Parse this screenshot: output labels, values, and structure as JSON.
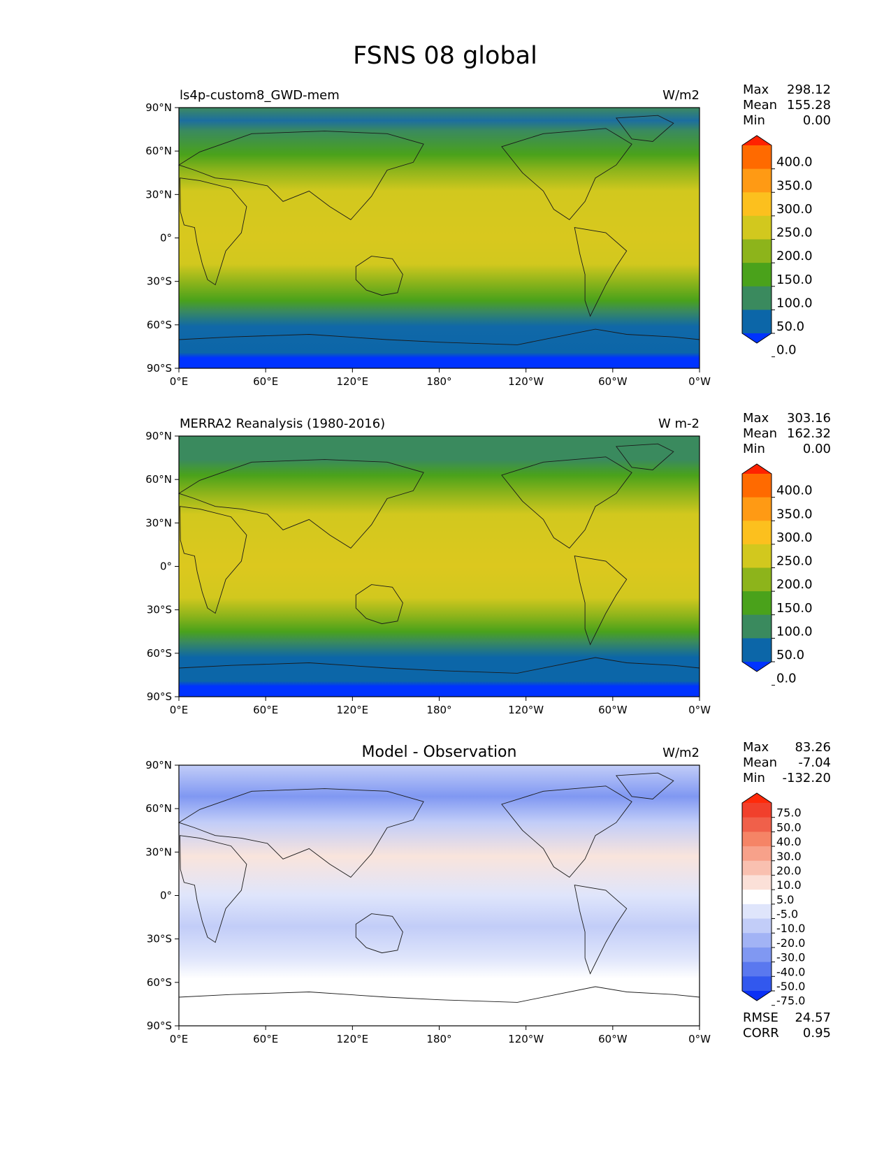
{
  "figure": {
    "title": "FSNS 08 global"
  },
  "axes": {
    "lat_labels": [
      "90°N",
      "60°N",
      "30°N",
      "0°",
      "30°S",
      "60°S",
      "90°S"
    ],
    "lon_labels": [
      "0°E",
      "60°E",
      "120°E",
      "180°",
      "120°W",
      "60°W",
      "0°W"
    ]
  },
  "panels": [
    {
      "id": "test",
      "left_title": "ls4p-custom8_GWD-mem",
      "center_title": "",
      "units": "W/m2",
      "stats": [
        {
          "label": "Max",
          "value": "298.12"
        },
        {
          "label": "Mean",
          "value": "155.28"
        },
        {
          "label": "Min",
          "value": "0.00"
        }
      ],
      "extra_stats": [],
      "colorbar": {
        "labels": [
          "400.0",
          "350.0",
          "300.0",
          "250.0",
          "200.0",
          "150.0",
          "100.0",
          "50.0",
          "0.0"
        ],
        "colors": [
          "#ff2200",
          "#ff6a00",
          "#ff9a14",
          "#fcc01e",
          "#d2c81e",
          "#8db41b",
          "#4aa21b",
          "#3a8a5e",
          "#0c66a8",
          "#0033ff"
        ]
      }
    },
    {
      "id": "reference",
      "left_title": "MERRA2 Reanalysis (1980-2016)",
      "center_title": "",
      "units": "W m-2",
      "stats": [
        {
          "label": "Max",
          "value": "303.16"
        },
        {
          "label": "Mean",
          "value": "162.32"
        },
        {
          "label": "Min",
          "value": "0.00"
        }
      ],
      "extra_stats": [],
      "colorbar": {
        "labels": [
          "400.0",
          "350.0",
          "300.0",
          "250.0",
          "200.0",
          "150.0",
          "100.0",
          "50.0",
          "0.0"
        ],
        "colors": [
          "#ff2200",
          "#ff6a00",
          "#ff9a14",
          "#fcc01e",
          "#d2c81e",
          "#8db41b",
          "#4aa21b",
          "#3a8a5e",
          "#0c66a8",
          "#0033ff"
        ]
      }
    },
    {
      "id": "difference",
      "left_title": "",
      "center_title": "Model - Observation",
      "units": "W/m2",
      "stats": [
        {
          "label": "Max",
          "value": "83.26"
        },
        {
          "label": "Mean",
          "value": "-7.04"
        },
        {
          "label": "Min",
          "value": "-132.20"
        }
      ],
      "extra_stats": [
        {
          "label": "RMSE",
          "value": "24.57"
        },
        {
          "label": "CORR",
          "value": "0.95"
        }
      ],
      "colorbar": {
        "labels": [
          "75.0",
          "50.0",
          "40.0",
          "30.0",
          "20.0",
          "10.0",
          "5.0",
          "-5.0",
          "-10.0",
          "-20.0",
          "-30.0",
          "-40.0",
          "-50.0",
          "-75.0"
        ],
        "colors": [
          "#ff2a0a",
          "#f1402c",
          "#f0604a",
          "#f58466",
          "#f7a18a",
          "#f9c0b0",
          "#fbe0d8",
          "#ffffff",
          "#dfe5fb",
          "#c2cdf8",
          "#a2b3f5",
          "#8098f2",
          "#5a78ef",
          "#3258ee",
          "#0a30f5"
        ]
      }
    }
  ]
}
